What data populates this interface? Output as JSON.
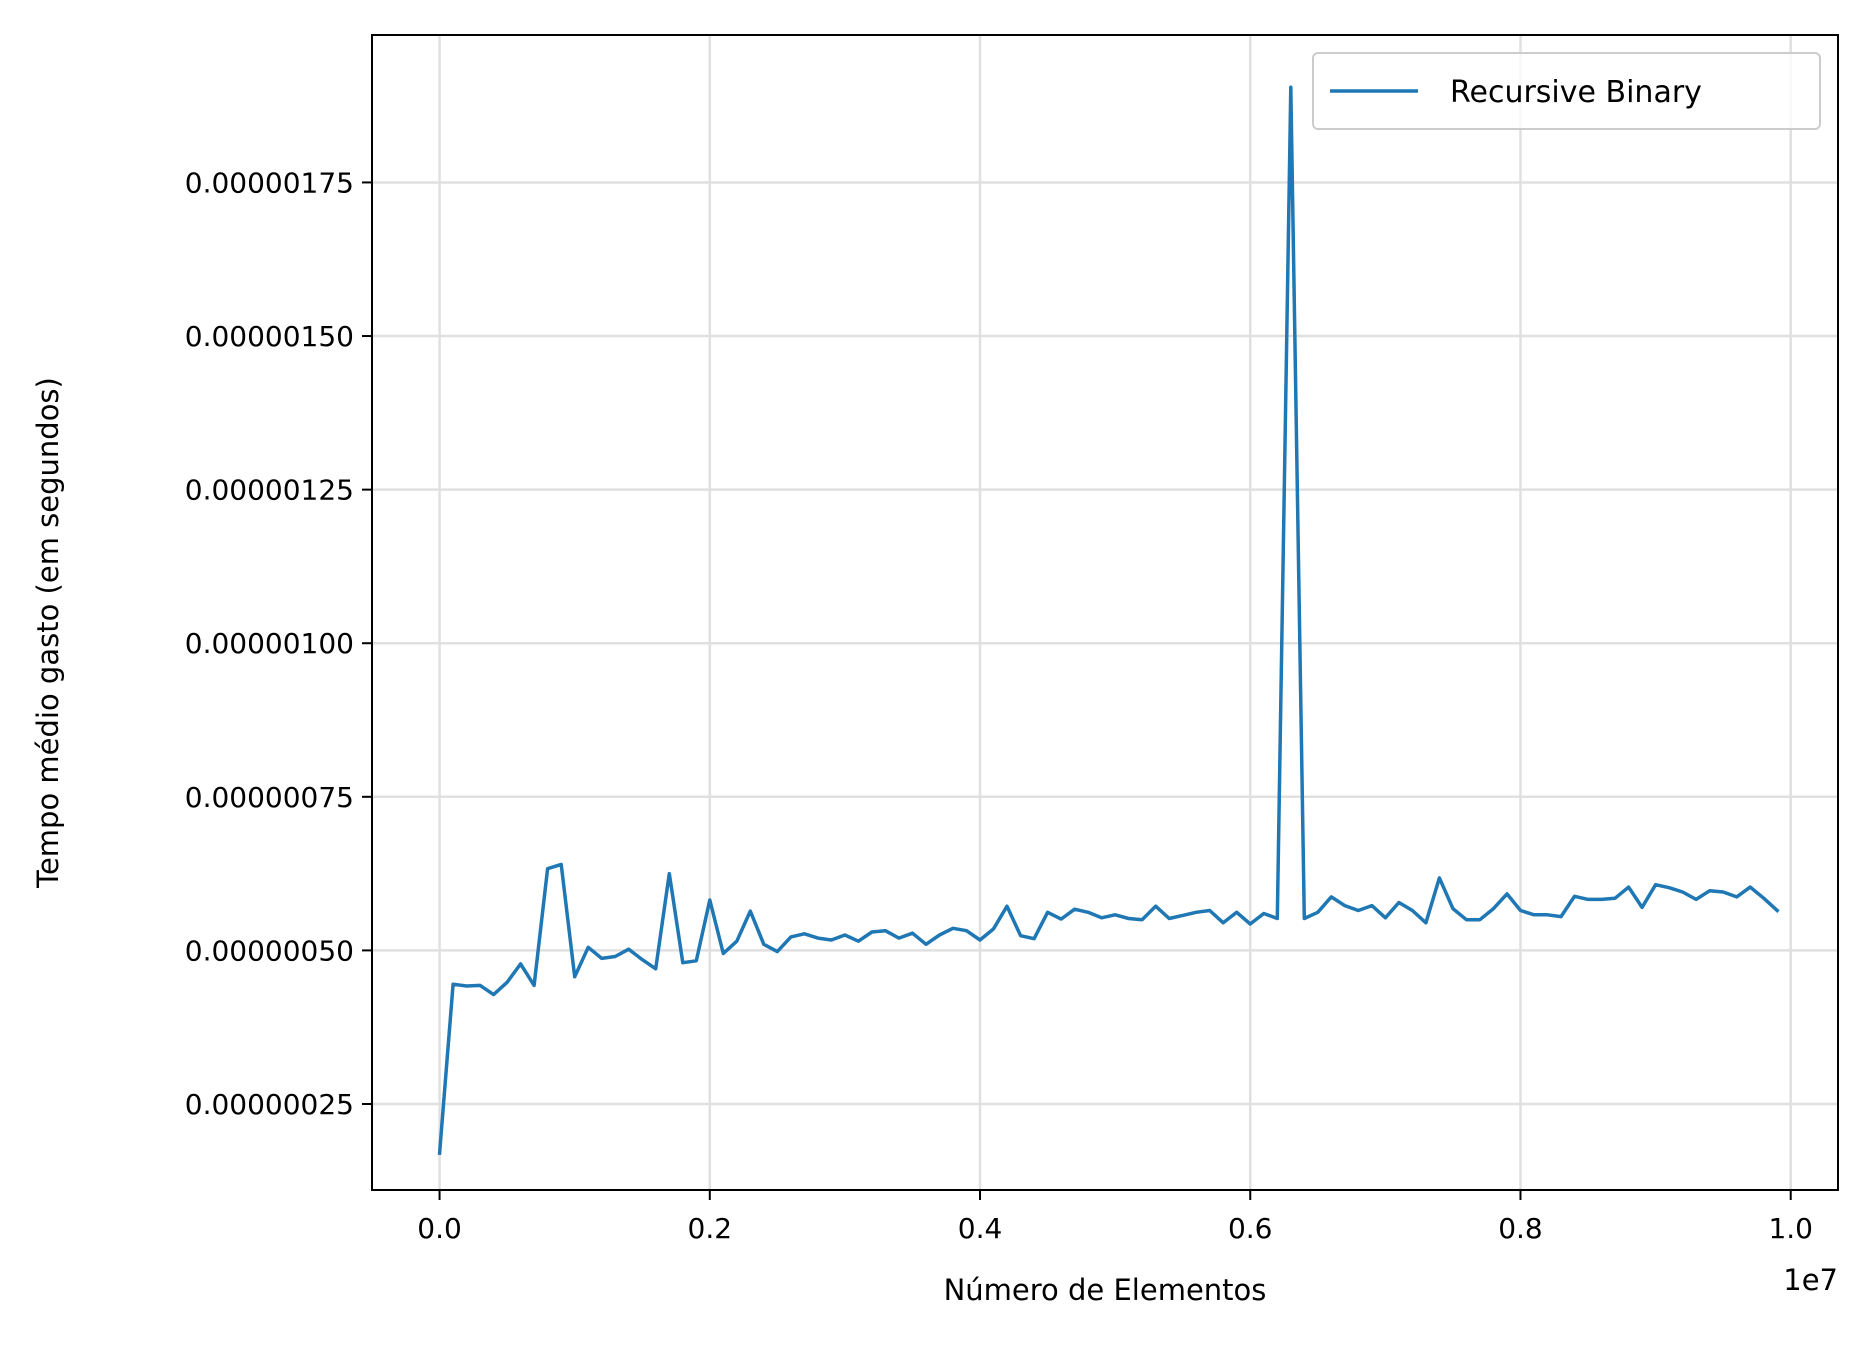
{
  "chart_data": {
    "type": "line",
    "title": "",
    "xlabel": "Número de Elementos",
    "ylabel": "Tempo médio gasto (em segundos)",
    "x_offset_label": "1e7",
    "xlim": [
      -0.05,
      1.035
    ],
    "ylim": [
      1.1e-07,
      1.99e-06
    ],
    "grid": true,
    "legend_position": "top-right",
    "x_ticks": [
      {
        "value": 0.0,
        "label": "0.0"
      },
      {
        "value": 0.2,
        "label": "0.2"
      },
      {
        "value": 0.4,
        "label": "0.4"
      },
      {
        "value": 0.6,
        "label": "0.6"
      },
      {
        "value": 0.8,
        "label": "0.8"
      },
      {
        "value": 1.0,
        "label": "1.0"
      }
    ],
    "y_ticks": [
      {
        "value": 2.5e-07,
        "label": "0.00000025"
      },
      {
        "value": 5e-07,
        "label": "0.00000050"
      },
      {
        "value": 7.5e-07,
        "label": "0.00000075"
      },
      {
        "value": 1e-06,
        "label": "0.00000100"
      },
      {
        "value": 1.25e-06,
        "label": "0.00000125"
      },
      {
        "value": 1.5e-06,
        "label": "0.00000150"
      },
      {
        "value": 1.75e-06,
        "label": "0.00000175"
      }
    ],
    "series": [
      {
        "name": "Recursive Binary",
        "color": "#1f77b4",
        "x": [
          0.0,
          0.01,
          0.02,
          0.03,
          0.04,
          0.05,
          0.06,
          0.07,
          0.08,
          0.09,
          0.1,
          0.11,
          0.12,
          0.13,
          0.14,
          0.15,
          0.16,
          0.17,
          0.18,
          0.19,
          0.2,
          0.21,
          0.22,
          0.23,
          0.24,
          0.25,
          0.26,
          0.27,
          0.28,
          0.29,
          0.3,
          0.31,
          0.32,
          0.33,
          0.34,
          0.35,
          0.36,
          0.37,
          0.38,
          0.39,
          0.4,
          0.41,
          0.42,
          0.43,
          0.44,
          0.45,
          0.46,
          0.47,
          0.48,
          0.49,
          0.5,
          0.51,
          0.52,
          0.53,
          0.54,
          0.55,
          0.56,
          0.57,
          0.58,
          0.59,
          0.6,
          0.61,
          0.62,
          0.63,
          0.64,
          0.65,
          0.66,
          0.67,
          0.68,
          0.69,
          0.7,
          0.71,
          0.72,
          0.73,
          0.74,
          0.75,
          0.76,
          0.77,
          0.78,
          0.79,
          0.8,
          0.81,
          0.82,
          0.83,
          0.84,
          0.85,
          0.86,
          0.87,
          0.88,
          0.89,
          0.9,
          0.91,
          0.92,
          0.93,
          0.94,
          0.95,
          0.96,
          0.97,
          0.98,
          0.99
        ],
        "y": [
          1.7e-07,
          4.45e-07,
          4.42e-07,
          4.43e-07,
          4.28e-07,
          4.48e-07,
          4.78e-07,
          4.43e-07,
          6.33e-07,
          6.4e-07,
          4.57e-07,
          5.05e-07,
          4.87e-07,
          4.9e-07,
          5.02e-07,
          4.85e-07,
          4.7e-07,
          6.25e-07,
          4.8e-07,
          4.83e-07,
          5.82e-07,
          4.95e-07,
          5.15e-07,
          5.64e-07,
          5.1e-07,
          4.98e-07,
          5.22e-07,
          5.27e-07,
          5.2e-07,
          5.17e-07,
          5.25e-07,
          5.15e-07,
          5.3e-07,
          5.32e-07,
          5.2e-07,
          5.28e-07,
          5.1e-07,
          5.25e-07,
          5.36e-07,
          5.32e-07,
          5.17e-07,
          5.35e-07,
          5.72e-07,
          5.24e-07,
          5.19e-07,
          5.62e-07,
          5.51e-07,
          5.67e-07,
          5.62e-07,
          5.53e-07,
          5.58e-07,
          5.52e-07,
          5.5e-07,
          5.72e-07,
          5.52e-07,
          5.57e-07,
          5.62e-07,
          5.65e-07,
          5.45e-07,
          5.62e-07,
          5.43e-07,
          5.6e-07,
          5.52e-07,
          1.905e-06,
          5.52e-07,
          5.62e-07,
          5.87e-07,
          5.73e-07,
          5.65e-07,
          5.73e-07,
          5.53e-07,
          5.78e-07,
          5.65e-07,
          5.45e-07,
          6.18e-07,
          5.68e-07,
          5.5e-07,
          5.5e-07,
          5.68e-07,
          5.92e-07,
          5.65e-07,
          5.58e-07,
          5.58e-07,
          5.55e-07,
          5.88e-07,
          5.83e-07,
          5.83e-07,
          5.85e-07,
          6.03e-07,
          5.7e-07,
          6.07e-07,
          6.02e-07,
          5.95e-07,
          5.83e-07,
          5.97e-07,
          5.95e-07,
          5.87e-07,
          6.03e-07,
          5.85e-07,
          5.65e-07
        ]
      }
    ]
  }
}
